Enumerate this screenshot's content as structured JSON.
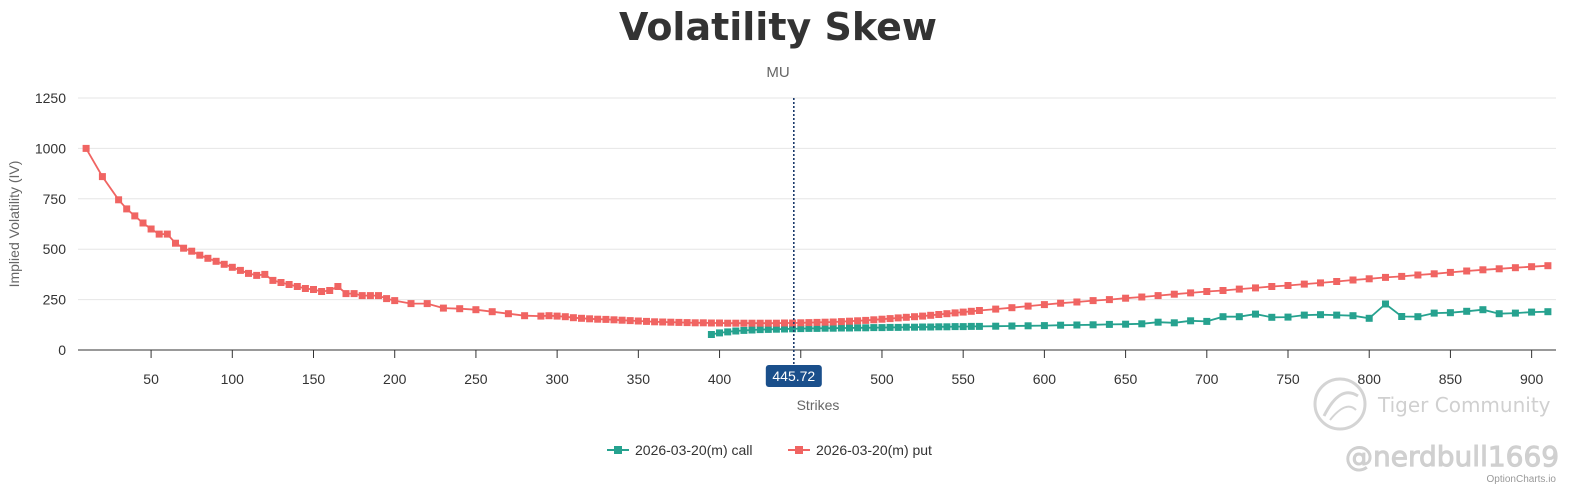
{
  "chart_data": {
    "type": "line",
    "title": "Volatility Skew",
    "subtitle": "MU",
    "xlabel": "Strikes",
    "ylabel": "Implied Volatility (IV)",
    "xlim": [
      5,
      915
    ],
    "ylim": [
      0,
      1250
    ],
    "xticks": [
      50,
      100,
      150,
      200,
      250,
      300,
      350,
      400,
      450,
      500,
      550,
      600,
      650,
      700,
      750,
      800,
      850,
      900
    ],
    "yticks": [
      0,
      250,
      500,
      750,
      1000,
      1250
    ],
    "grid": true,
    "legend_position": "bottom-center",
    "current_price": 445.72,
    "current_price_label": "445.72",
    "series": [
      {
        "name": "2026-03-20(m) call",
        "color": "#26a28f",
        "points": [
          [
            395,
            77
          ],
          [
            400,
            85
          ],
          [
            405,
            90
          ],
          [
            410,
            94
          ],
          [
            415,
            97
          ],
          [
            420,
            99
          ],
          [
            425,
            101
          ],
          [
            430,
            102
          ],
          [
            435,
            103
          ],
          [
            440,
            104
          ],
          [
            445,
            105
          ],
          [
            450,
            106
          ],
          [
            455,
            107
          ],
          [
            460,
            107
          ],
          [
            465,
            108
          ],
          [
            470,
            108
          ],
          [
            475,
            109
          ],
          [
            480,
            109
          ],
          [
            485,
            110
          ],
          [
            490,
            110
          ],
          [
            495,
            111
          ],
          [
            500,
            111
          ],
          [
            505,
            112
          ],
          [
            510,
            112
          ],
          [
            515,
            113
          ],
          [
            520,
            113
          ],
          [
            525,
            114
          ],
          [
            530,
            114
          ],
          [
            535,
            115
          ],
          [
            540,
            115
          ],
          [
            545,
            116
          ],
          [
            550,
            116
          ],
          [
            555,
            117
          ],
          [
            560,
            117
          ],
          [
            570,
            118
          ],
          [
            580,
            119
          ],
          [
            590,
            120
          ],
          [
            600,
            121
          ],
          [
            610,
            123
          ],
          [
            620,
            124
          ],
          [
            630,
            125
          ],
          [
            640,
            127
          ],
          [
            650,
            128
          ],
          [
            660,
            130
          ],
          [
            670,
            138
          ],
          [
            680,
            135
          ],
          [
            690,
            145
          ],
          [
            700,
            142
          ],
          [
            710,
            165
          ],
          [
            720,
            165
          ],
          [
            730,
            178
          ],
          [
            740,
            162
          ],
          [
            750,
            163
          ],
          [
            760,
            173
          ],
          [
            770,
            175
          ],
          [
            780,
            173
          ],
          [
            790,
            170
          ],
          [
            800,
            157
          ],
          [
            810,
            228
          ],
          [
            820,
            166
          ],
          [
            830,
            165
          ],
          [
            840,
            183
          ],
          [
            850,
            185
          ],
          [
            860,
            192
          ],
          [
            870,
            200
          ],
          [
            880,
            180
          ],
          [
            890,
            183
          ],
          [
            900,
            188
          ],
          [
            910,
            190
          ]
        ]
      },
      {
        "name": "2026-03-20(m) put",
        "color": "#f06462",
        "points": [
          [
            10,
            1000
          ],
          [
            20,
            860
          ],
          [
            30,
            745
          ],
          [
            35,
            700
          ],
          [
            40,
            665
          ],
          [
            45,
            630
          ],
          [
            50,
            600
          ],
          [
            55,
            575
          ],
          [
            60,
            575
          ],
          [
            65,
            530
          ],
          [
            70,
            505
          ],
          [
            75,
            490
          ],
          [
            80,
            470
          ],
          [
            85,
            455
          ],
          [
            90,
            440
          ],
          [
            95,
            425
          ],
          [
            100,
            410
          ],
          [
            105,
            395
          ],
          [
            110,
            380
          ],
          [
            115,
            370
          ],
          [
            120,
            375
          ],
          [
            125,
            345
          ],
          [
            130,
            335
          ],
          [
            135,
            325
          ],
          [
            140,
            315
          ],
          [
            145,
            305
          ],
          [
            150,
            300
          ],
          [
            155,
            290
          ],
          [
            160,
            295
          ],
          [
            165,
            315
          ],
          [
            170,
            280
          ],
          [
            175,
            280
          ],
          [
            180,
            270
          ],
          [
            185,
            270
          ],
          [
            190,
            270
          ],
          [
            195,
            255
          ],
          [
            200,
            245
          ],
          [
            210,
            230
          ],
          [
            220,
            230
          ],
          [
            230,
            208
          ],
          [
            240,
            205
          ],
          [
            250,
            200
          ],
          [
            260,
            190
          ],
          [
            270,
            180
          ],
          [
            280,
            170
          ],
          [
            290,
            168
          ],
          [
            295,
            170
          ],
          [
            300,
            168
          ],
          [
            305,
            165
          ],
          [
            310,
            160
          ],
          [
            315,
            157
          ],
          [
            320,
            155
          ],
          [
            325,
            153
          ],
          [
            330,
            152
          ],
          [
            335,
            150
          ],
          [
            340,
            148
          ],
          [
            345,
            146
          ],
          [
            350,
            144
          ],
          [
            355,
            142
          ],
          [
            360,
            140
          ],
          [
            365,
            139
          ],
          [
            370,
            138
          ],
          [
            375,
            137
          ],
          [
            380,
            136
          ],
          [
            385,
            135
          ],
          [
            390,
            135
          ],
          [
            395,
            134
          ],
          [
            400,
            134
          ],
          [
            405,
            133
          ],
          [
            410,
            133
          ],
          [
            415,
            133
          ],
          [
            420,
            133
          ],
          [
            425,
            133
          ],
          [
            430,
            133
          ],
          [
            435,
            133
          ],
          [
            440,
            134
          ],
          [
            445,
            134
          ],
          [
            450,
            135
          ],
          [
            455,
            136
          ],
          [
            460,
            137
          ],
          [
            465,
            138
          ],
          [
            470,
            139
          ],
          [
            475,
            141
          ],
          [
            480,
            143
          ],
          [
            485,
            145
          ],
          [
            490,
            147
          ],
          [
            495,
            150
          ],
          [
            500,
            153
          ],
          [
            505,
            156
          ],
          [
            510,
            159
          ],
          [
            515,
            162
          ],
          [
            520,
            165
          ],
          [
            525,
            168
          ],
          [
            530,
            172
          ],
          [
            535,
            176
          ],
          [
            540,
            180
          ],
          [
            545,
            184
          ],
          [
            550,
            188
          ],
          [
            555,
            192
          ],
          [
            560,
            196
          ],
          [
            570,
            203
          ],
          [
            580,
            210
          ],
          [
            590,
            218
          ],
          [
            600,
            225
          ],
          [
            610,
            232
          ],
          [
            620,
            238
          ],
          [
            630,
            245
          ],
          [
            640,
            250
          ],
          [
            650,
            257
          ],
          [
            660,
            263
          ],
          [
            670,
            270
          ],
          [
            680,
            277
          ],
          [
            690,
            283
          ],
          [
            700,
            290
          ],
          [
            710,
            295
          ],
          [
            720,
            302
          ],
          [
            730,
            308
          ],
          [
            740,
            315
          ],
          [
            750,
            320
          ],
          [
            760,
            327
          ],
          [
            770,
            333
          ],
          [
            780,
            340
          ],
          [
            790,
            347
          ],
          [
            800,
            353
          ],
          [
            810,
            360
          ],
          [
            820,
            365
          ],
          [
            830,
            372
          ],
          [
            840,
            378
          ],
          [
            850,
            385
          ],
          [
            860,
            392
          ],
          [
            870,
            398
          ],
          [
            880,
            403
          ],
          [
            890,
            408
          ],
          [
            900,
            413
          ],
          [
            910,
            418
          ]
        ]
      }
    ]
  },
  "watermark": {
    "brand": "Tiger Community",
    "handle": "@nerdbull1669"
  },
  "credit": "OptionCharts.io"
}
